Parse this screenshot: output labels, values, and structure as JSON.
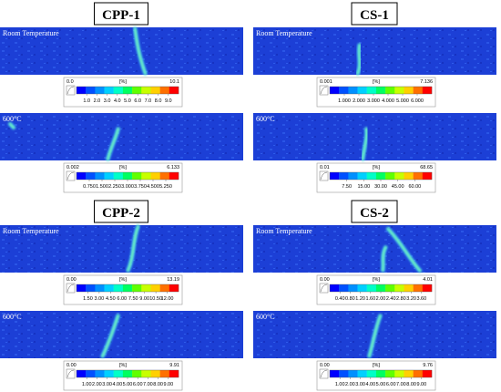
{
  "panels": [
    {
      "title": "CPP-1",
      "maps": [
        {
          "label": "Room Temperature",
          "scale": {
            "min": "0.0",
            "unit": "[%]",
            "max": "10.1",
            "ticks": [
              "1.0",
              "2.0",
              "3.0",
              "4.0",
              "5.0",
              "6.0",
              "7.0",
              "8.0",
              "9.0"
            ]
          }
        },
        {
          "label": "600°C",
          "scale": {
            "min": "0.002",
            "unit": "[%]",
            "max": "6.133",
            "ticks": [
              "0.750",
              "1.500",
              "2.250",
              "3.000",
              "3.750",
              "4.500",
              "5.250"
            ]
          }
        }
      ]
    },
    {
      "title": "CS-1",
      "maps": [
        {
          "label": "Room Temperature",
          "scale": {
            "min": "0.001",
            "unit": "[%]",
            "max": "7.136",
            "ticks": [
              "1.000",
              "2.000",
              "3.000",
              "4.000",
              "5.000",
              "6.000"
            ]
          }
        },
        {
          "label": "600°C",
          "scale": {
            "min": "0.01",
            "unit": "[%]",
            "max": "68.65",
            "ticks": [
              "7.50",
              "15.00",
              "30.00",
              "45.00",
              "60.00"
            ]
          }
        }
      ]
    },
    {
      "title": "CPP-2",
      "maps": [
        {
          "label": "Room Temperature",
          "scale": {
            "min": "0.00",
            "unit": "[%]",
            "max": "13.19",
            "ticks": [
              "1.50",
              "3.00",
              "4.50",
              "6.00",
              "7.50",
              "9.00",
              "10.50",
              "12.00"
            ]
          }
        },
        {
          "label": "600°C",
          "scale": {
            "min": "0.00",
            "unit": "[%]",
            "max": "9.91",
            "ticks": [
              "1.00",
              "2.00",
              "3.00",
              "4.00",
              "5.00",
              "6.00",
              "7.00",
              "8.00",
              "9.00"
            ]
          }
        }
      ]
    },
    {
      "title": "CS-2",
      "maps": [
        {
          "label": "Room Temperature",
          "scale": {
            "min": "0.00",
            "unit": "[%]",
            "max": "4.01",
            "ticks": [
              "0.40",
              "0.80",
              "1.20",
              "1.60",
              "2.00",
              "2.40",
              "2.80",
              "3.20",
              "3.60"
            ]
          }
        },
        {
          "label": "600°C",
          "scale": {
            "min": "0.00",
            "unit": "[%]",
            "max": "9.76",
            "ticks": [
              "1.00",
              "2.00",
              "3.00",
              "4.00",
              "5.00",
              "6.00",
              "7.00",
              "8.00",
              "9.00"
            ]
          }
        }
      ]
    }
  ]
}
